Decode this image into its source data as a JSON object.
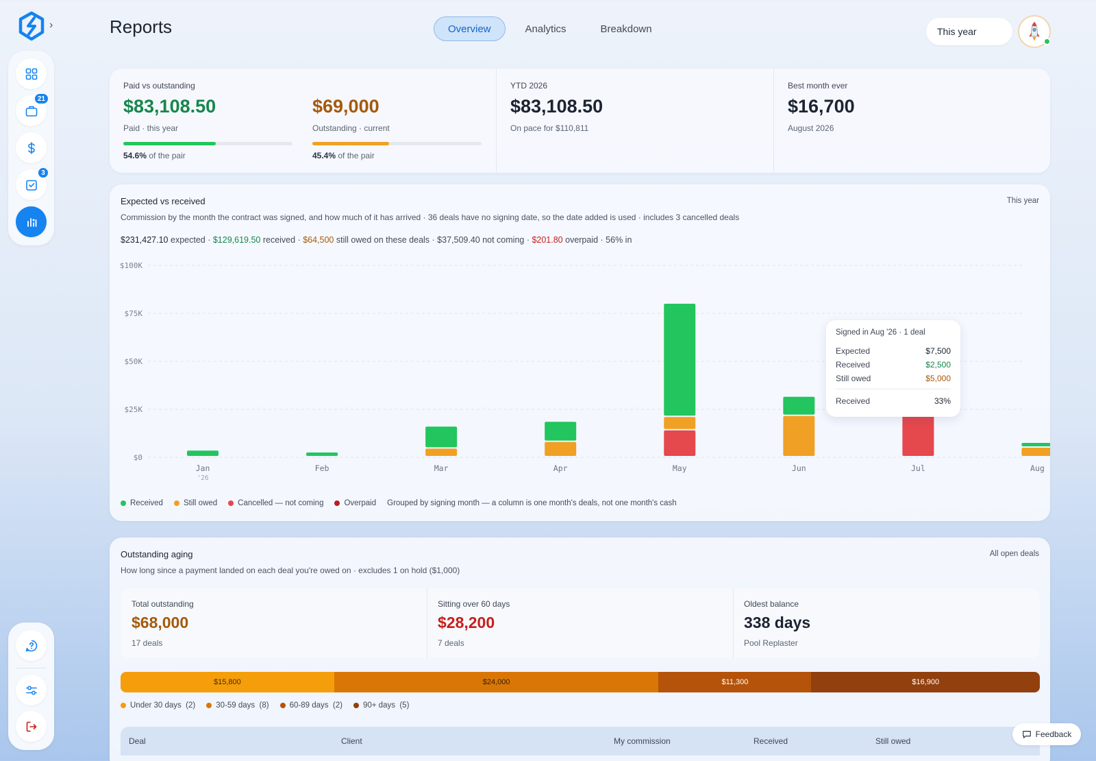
{
  "header": {
    "title": "Reports",
    "tabs": [
      {
        "label": "Overview",
        "active": true
      },
      {
        "label": "Analytics",
        "active": false
      },
      {
        "label": "Breakdown",
        "active": false
      }
    ],
    "period": "This year"
  },
  "sidebar": {
    "items": [
      {
        "icon": "dashboard-grid-icon"
      },
      {
        "icon": "briefcase-icon",
        "badge": "21"
      },
      {
        "icon": "dollar-icon"
      },
      {
        "icon": "task-check-icon",
        "badge": "3"
      },
      {
        "icon": "reports-chart-icon",
        "active": true
      }
    ],
    "bottom": [
      {
        "icon": "help-icon"
      },
      {
        "icon": "settings-sliders-icon"
      },
      {
        "icon": "logout-icon"
      }
    ]
  },
  "kpis": {
    "paid_vs_outstanding": {
      "label": "Paid vs outstanding",
      "paid": {
        "value": "$83,108.50",
        "caption": "Paid · this year",
        "pct_label": "54.6%",
        "pct_suffix": " of the pair",
        "fraction": 0.546
      },
      "outstanding": {
        "value": "$69,000",
        "caption": "Outstanding · current",
        "pct_label": "45.4%",
        "pct_suffix": " of the pair",
        "fraction": 0.454
      }
    },
    "ytd": {
      "label": "YTD 2026",
      "value": "$83,108.50",
      "caption": "On pace for $110,811"
    },
    "best_month": {
      "label": "Best month ever",
      "value": "$16,700",
      "caption": "August 2026"
    }
  },
  "expected": {
    "title": "Expected vs received",
    "period": "This year",
    "desc": "Commission by the month the contract was signed, and how much of it has arrived · 36 deals have no signing date, so the date added is used · includes 3 cancelled deals",
    "summary": {
      "expected_amt": "$231,427.10",
      "expected_txt": " expected · ",
      "received_amt": "$129,619.50",
      "received_txt": " received · ",
      "owed_amt": "$64,500",
      "owed_txt": " still owed on these deals · $37,509.40 not coming · ",
      "overpaid_amt": "$201.80",
      "overpaid_txt": " overpaid · 56% in"
    },
    "legend": {
      "received": "Received",
      "owed": "Still owed",
      "cancelled": "Cancelled — not coming",
      "overpaid": "Overpaid",
      "note": "Grouped by signing month — a column is one month's deals, not one month's cash"
    },
    "tooltip": {
      "title": "Signed in Aug '26 · 1 deal",
      "expected_label": "Expected",
      "expected_value": "$7,500",
      "received_label": "Received",
      "received_value": "$2,500",
      "owed_label": "Still owed",
      "owed_value": "$5,000",
      "pct_label": "Received",
      "pct_value": "33%"
    }
  },
  "chart_data": {
    "type": "bar",
    "stacked": true,
    "categories": [
      "Jan",
      "Feb",
      "Mar",
      "Apr",
      "May",
      "Jun",
      "Jul",
      "Aug"
    ],
    "category_sublabels": [
      "'26",
      "",
      "",
      "",
      "",
      "",
      "",
      ""
    ],
    "ylim": [
      0,
      100000
    ],
    "yticks": [
      0,
      25000,
      50000,
      75000,
      100000
    ],
    "ytick_labels": [
      "$0",
      "$25K",
      "$50K",
      "$75K",
      "$100K"
    ],
    "grid": true,
    "series": [
      {
        "name": "Cancelled — not coming",
        "color": "#e5484d",
        "values": [
          0,
          0,
          0,
          0,
          14000,
          0,
          22000,
          0
        ]
      },
      {
        "name": "Still owed",
        "color": "#f0a024",
        "values": [
          0,
          0,
          4500,
          8000,
          7000,
          21500,
          1000,
          5000
        ]
      },
      {
        "name": "Received",
        "color": "#22c55e",
        "values": [
          3500,
          2500,
          11500,
          10500,
          59000,
          10000,
          0,
          2500
        ]
      },
      {
        "name": "Overpaid",
        "color": "#b91c1c",
        "values": [
          0,
          0,
          0,
          0,
          0,
          0,
          0,
          0
        ]
      }
    ]
  },
  "aging": {
    "title": "Outstanding aging",
    "scope": "All open deals",
    "desc": "How long since a payment landed on each deal you're owed on · excludes 1 on hold ($1,000)",
    "total": {
      "label": "Total outstanding",
      "value": "$68,000",
      "caption": "17 deals"
    },
    "over60": {
      "label": "Sitting over 60 days",
      "value": "$28,200",
      "caption": "7 deals"
    },
    "oldest": {
      "label": "Oldest balance",
      "value": "338 days",
      "caption": "Pool Replaster"
    },
    "buckets": [
      {
        "label": "$15,800",
        "amount": 15800,
        "color": "#f59e0b",
        "text_color": "#4a2a00",
        "legend": "Under 30 days",
        "count": "(2)"
      },
      {
        "label": "$24,000",
        "amount": 24000,
        "color": "#d97706",
        "text_color": "#3d2000",
        "legend": "30-59 days",
        "count": "(8)"
      },
      {
        "label": "$11,300",
        "amount": 11300,
        "color": "#b45309",
        "text_color": "#ffffff",
        "legend": "60-89 days",
        "count": "(2)"
      },
      {
        "label": "$16,900",
        "amount": 16900,
        "color": "#92400e",
        "text_color": "#ffffff",
        "legend": "90+ days",
        "count": "(5)"
      }
    ],
    "table_columns": [
      "Deal",
      "Client",
      "My commission",
      "Received",
      "Still owed"
    ]
  },
  "feedback_label": "Feedback"
}
